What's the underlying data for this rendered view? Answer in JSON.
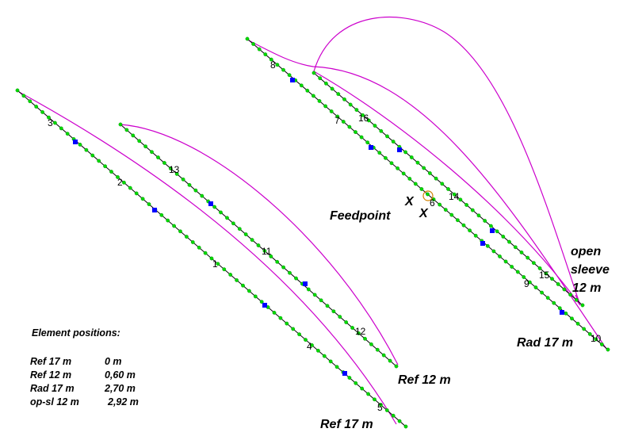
{
  "colors": {
    "wire": "#000000",
    "current": "#00d800",
    "current_node": "#008c00",
    "source": "#0000ff",
    "pattern": "#cc00cc",
    "feed_ring": "#d08000"
  },
  "segment_numbers": [
    "1",
    "2",
    "3",
    "4",
    "5",
    "6",
    "7",
    "8",
    "9",
    "10",
    "11",
    "12",
    "13",
    "14",
    "15",
    "16"
  ],
  "labels": {
    "feedpoint": "Feedpoint",
    "x_mark": "X",
    "ref17": "Ref 17 m",
    "ref12": "Ref 12 m",
    "rad17": "Rad 17 m",
    "open_sleeve_1": "open",
    "open_sleeve_2": "sleeve",
    "open_sleeve_3": "12 m"
  },
  "element_positions": {
    "heading": "Element positions:",
    "rows": [
      {
        "name": "Ref 17 m",
        "value": "0 m"
      },
      {
        "name": "Ref 12 m",
        "value": "0,60 m"
      },
      {
        "name": "Rad 17 m",
        "value": "2,70 m"
      },
      {
        "name": "op-sl 12 m",
        "value": "2,92 m"
      }
    ]
  }
}
